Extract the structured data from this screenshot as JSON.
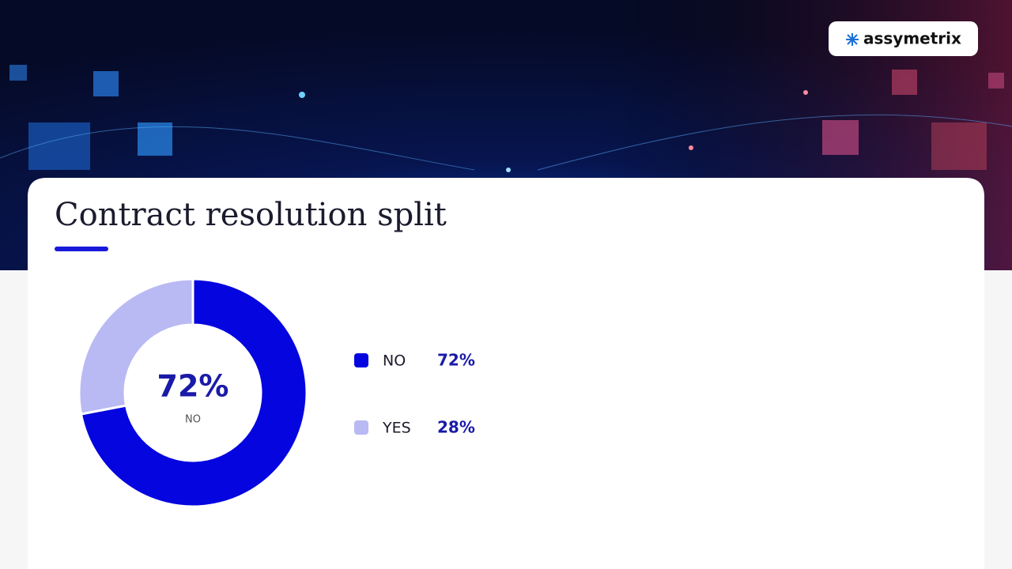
{
  "logo": "assymetrix",
  "chart_data": {
    "type": "pie",
    "title": "Contract resolution split",
    "categories": [
      "NO",
      "YES"
    ],
    "values": [
      72,
      28
    ],
    "value_labels": [
      "72%",
      "28%"
    ],
    "colors": [
      "#0505e0",
      "#b9b9f4"
    ]
  }
}
